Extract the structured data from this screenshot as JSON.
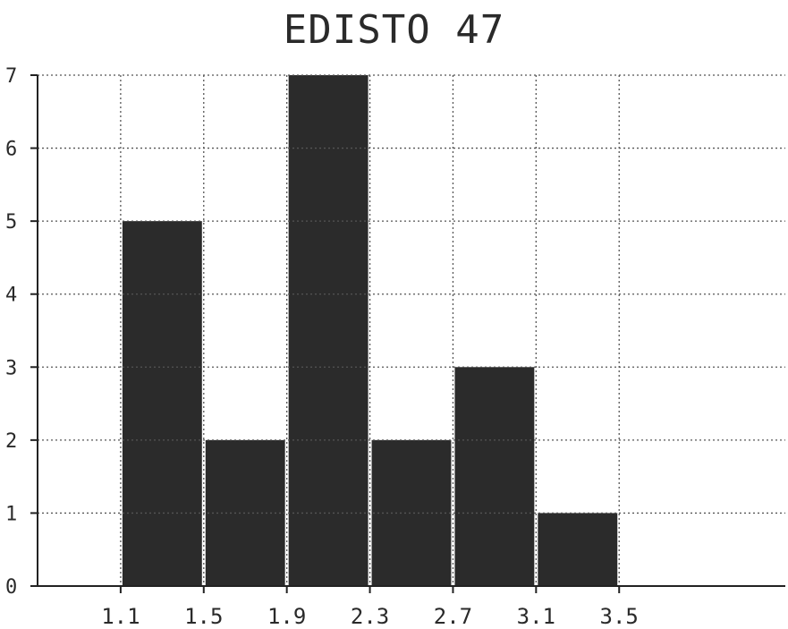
{
  "chart_data": {
    "type": "bar",
    "title": "EDISTO 47",
    "xlabel": "",
    "ylabel": "",
    "x_ticks": [
      "1.1",
      "1.5",
      "1.9",
      "2.3",
      "2.7",
      "3.1",
      "3.5"
    ],
    "y_ticks": [
      "0",
      "1",
      "2",
      "3",
      "4",
      "5",
      "6",
      "7"
    ],
    "bins": [
      {
        "from": 1.1,
        "to": 1.5,
        "count": 5
      },
      {
        "from": 1.5,
        "to": 1.9,
        "count": 2
      },
      {
        "from": 1.9,
        "to": 2.3,
        "count": 7
      },
      {
        "from": 2.3,
        "to": 2.7,
        "count": 2
      },
      {
        "from": 2.7,
        "to": 3.1,
        "count": 3
      },
      {
        "from": 3.1,
        "to": 3.5,
        "count": 1
      }
    ],
    "xlim": [
      0.7,
      4.3
    ],
    "ylim": [
      0,
      7
    ],
    "grid": true,
    "bar_color": "#2b2b2b",
    "grid_color": "#555555"
  }
}
